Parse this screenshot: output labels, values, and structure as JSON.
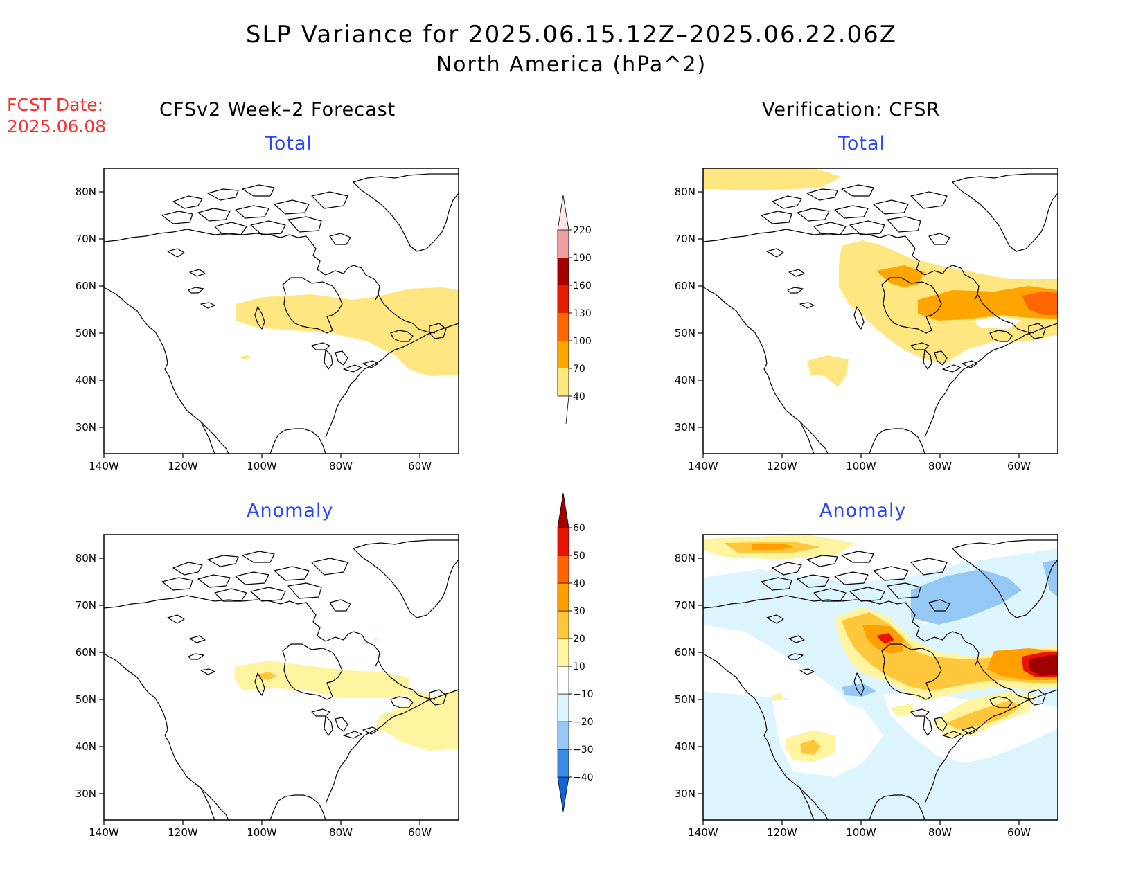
{
  "title": "SLP Variance for 2025.06.15.12Z–2025.06.22.06Z",
  "subtitle": "North America (hPa^2)",
  "fcst_label": "FCST Date:",
  "fcst_date": "2025.06.08",
  "left_column_title": "CFSv2 Week–2 Forecast",
  "right_column_title": "Verification: CFSR",
  "panels": {
    "forecast_total": {
      "title": "Total"
    },
    "verification_total": {
      "title": "Total"
    },
    "forecast_anomaly": {
      "title": "Anomaly"
    },
    "verification_anomaly": {
      "title": "Anomaly"
    }
  },
  "lat_ticks": [
    "80N",
    "70N",
    "60N",
    "50N",
    "40N",
    "30N"
  ],
  "lon_ticks": [
    "140W",
    "120W",
    "100W",
    "80W",
    "60W"
  ],
  "total_colorbar": {
    "labels": [
      "40",
      "70",
      "100",
      "130",
      "160",
      "190",
      "220"
    ],
    "colors": [
      "#ffe680",
      "#ffa500",
      "#ff6600",
      "#e61e00",
      "#a50000",
      "#f0a0a0",
      "#ffe6e6"
    ]
  },
  "anomaly_colorbar": {
    "labels": [
      "−40",
      "−30",
      "−20",
      "−10",
      "10",
      "20",
      "30",
      "40",
      "50",
      "60"
    ],
    "colors": [
      "#1464d2",
      "#3c8ce6",
      "#96c8f5",
      "#dcf5ff",
      "#ffffff",
      "#fff5a0",
      "#ffc83c",
      "#ffa000",
      "#ff6400",
      "#e61400",
      "#a00000"
    ]
  }
}
